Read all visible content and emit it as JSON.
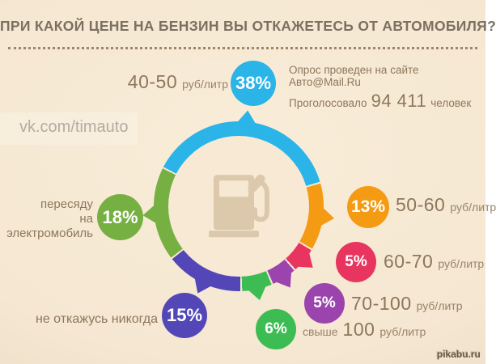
{
  "title": "ПРИ КАКОЙ ЦЕНЕ НА БЕНЗИН ВЫ ОТКАЖЕТЕСЬ ОТ АВТОМОБИЛЯ?",
  "survey": {
    "line1": "Опрос проведен на сайте Авто@Mail.Ru",
    "line2_prefix": "Проголосовало",
    "votes": "94 411",
    "line2_suffix": "человек"
  },
  "watermark": "vk.com/timauto",
  "footer_watermark": "pikabu.ru",
  "theme": {
    "background": "#f5e7d1",
    "text_brown": "#8d775c",
    "title_color": "#7b7061",
    "icon_beige": "#dcc9ab"
  },
  "chart_data": {
    "type": "pie",
    "subtype": "donut",
    "title": "При какой цене на бензин вы откажетесь от автомобиля?",
    "unit": "%",
    "total_votes": "94 411",
    "start_angle_deg": -63,
    "segment_gap_deg": 1.2,
    "gap_color": "#f5e7d1",
    "center_icon": "fuel-pump",
    "legend_position": "around",
    "segments": [
      {
        "label": "40-50 руб/литр",
        "value": 38,
        "pct": "38%",
        "color": "#2ab4e8",
        "big": "40-50",
        "small": "руб/литр"
      },
      {
        "label": "50-60 руб/литр",
        "value": 13,
        "pct": "13%",
        "color": "#f59b13",
        "big": "50-60",
        "small": "руб/литр"
      },
      {
        "label": "60-70 руб/литр",
        "value": 5,
        "pct": "5%",
        "color": "#e8355f",
        "big": "60-70",
        "small": "руб/литр"
      },
      {
        "label": "70-100 руб/литр",
        "value": 5,
        "pct": "5%",
        "color": "#9b44ae",
        "big": "70-100",
        "small": "руб/литр"
      },
      {
        "label": "свыше 100 руб/литр",
        "value": 6,
        "pct": "6%",
        "color": "#3cbc52",
        "prefix": "свыше",
        "big": "100",
        "small": "руб/литр"
      },
      {
        "label": "не откажусь никогда",
        "value": 15,
        "pct": "15%",
        "color": "#5347b8",
        "text_only": "не откажусь никогда"
      },
      {
        "label": "пересяду на электромобиль",
        "value": 18,
        "pct": "18%",
        "color": "#76b043",
        "line1": "пересяду",
        "line2": "на электромобиль"
      }
    ]
  }
}
